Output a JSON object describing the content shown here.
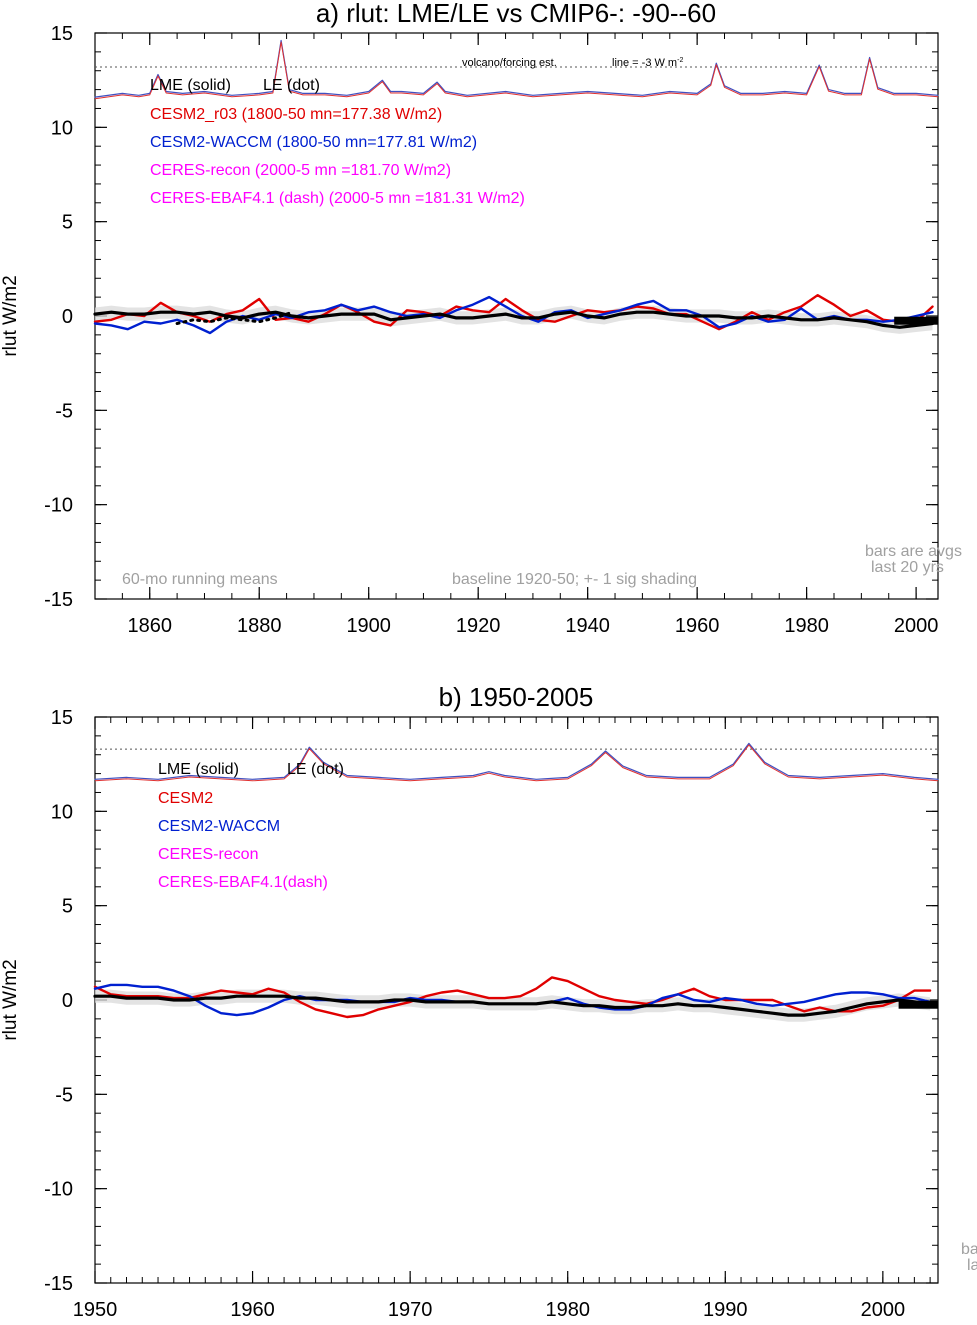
{
  "chart_data": [
    {
      "type": "line",
      "title": "a) rlut: LME/LE vs CMIP6-: -90--60",
      "ylabel": "rlut W/m2",
      "xlim": [
        1850,
        2004
      ],
      "ylim": [
        -15,
        15
      ],
      "x_ticks": [
        "1860",
        "1880",
        "1900",
        "1920",
        "1940",
        "1960",
        "1980",
        "2000"
      ],
      "x_tick_values": [
        1860,
        1880,
        1900,
        1920,
        1940,
        1960,
        1980,
        2000
      ],
      "y_ticks": [
        "15",
        "10",
        "5",
        "0",
        "-5",
        "-10",
        "-15"
      ],
      "y_tick_values": [
        15,
        10,
        5,
        0,
        -5,
        -10,
        -15
      ],
      "legend": {
        "header_solid": "LME (solid)",
        "header_dot": "LE (dot)",
        "entries": [
          {
            "text": "CESM2_r03 (1800-50 mn=177.38 W/m2)",
            "color": "#e00000"
          },
          {
            "text": "CESM2-WACCM (1800-50 mn=177.81 W/m2)",
            "color": "#0020d0"
          },
          {
            "text": "CERES-recon (2000-5 mn =181.70 W/m2)",
            "color": "#ff00ff"
          },
          {
            "text": "CERES-EBAF4.1 (dash) (2000-5 mn =181.31 W/m2)",
            "color": "#ff00ff"
          }
        ]
      },
      "annotations": {
        "volcano": "volcano/forcing est.",
        "line_note": "line = -3 W m",
        "line_note_sup": "-2",
        "running_means": "60-mo running means",
        "baseline": "baseline 1920-50; +- 1 sig shading",
        "bars_line1": "bars are avgs",
        "bars_line2": "last 20 yrs"
      },
      "reference_line_y": 13.2,
      "series": [
        {
          "name": "CESM2_r03",
          "color": "#e00000",
          "x": [
            1850,
            1853,
            1856,
            1859,
            1862,
            1865,
            1868,
            1871,
            1874,
            1877,
            1880,
            1883,
            1886,
            1889,
            1892,
            1895,
            1898,
            1901,
            1904,
            1907,
            1910,
            1913,
            1916,
            1919,
            1922,
            1925,
            1928,
            1931,
            1934,
            1937,
            1940,
            1943,
            1946,
            1949,
            1952,
            1955,
            1958,
            1961,
            1964,
            1967,
            1970,
            1973,
            1976,
            1979,
            1982,
            1985,
            1988,
            1991,
            1994,
            1997,
            2000,
            2003
          ],
          "y": [
            -0.3,
            -0.2,
            0.1,
            0.0,
            0.7,
            0.2,
            0.0,
            -0.3,
            0.1,
            0.3,
            0.9,
            -0.2,
            -0.1,
            -0.3,
            0.1,
            0.6,
            0.2,
            -0.3,
            -0.5,
            0.3,
            0.2,
            0.0,
            0.5,
            0.3,
            0.2,
            0.9,
            0.3,
            -0.2,
            -0.3,
            0.0,
            0.3,
            0.2,
            0.3,
            0.5,
            0.4,
            0.1,
            0.1,
            -0.3,
            -0.7,
            -0.3,
            0.2,
            -0.2,
            0.2,
            0.5,
            1.1,
            0.6,
            0.0,
            0.3,
            -0.2,
            -0.3,
            -0.3,
            0.5
          ]
        },
        {
          "name": "CESM2-WACCM",
          "color": "#0020d0",
          "x": [
            1850,
            1853,
            1856,
            1859,
            1862,
            1865,
            1868,
            1871,
            1874,
            1877,
            1880,
            1883,
            1886,
            1889,
            1892,
            1895,
            1898,
            1901,
            1904,
            1907,
            1910,
            1913,
            1916,
            1919,
            1922,
            1925,
            1928,
            1931,
            1934,
            1937,
            1940,
            1943,
            1946,
            1949,
            1952,
            1955,
            1958,
            1961,
            1964,
            1967,
            1970,
            1973,
            1976,
            1979,
            1982,
            1985,
            1988,
            1991,
            1994,
            1997,
            2000,
            2003
          ],
          "y": [
            -0.4,
            -0.5,
            -0.7,
            -0.3,
            -0.4,
            -0.2,
            -0.5,
            -0.9,
            -0.3,
            0.0,
            -0.2,
            0.1,
            -0.1,
            0.2,
            0.3,
            0.6,
            0.3,
            0.5,
            0.2,
            0.0,
            0.1,
            -0.1,
            0.3,
            0.6,
            1.0,
            0.5,
            0.0,
            -0.3,
            0.2,
            0.3,
            -0.1,
            0.1,
            0.3,
            0.6,
            0.8,
            0.3,
            0.3,
            0.0,
            -0.6,
            -0.4,
            0.0,
            -0.3,
            -0.2,
            0.4,
            -0.2,
            0.0,
            -0.2,
            -0.2,
            -0.3,
            -0.2,
            0.0,
            0.2
          ]
        },
        {
          "name": "LME",
          "color": "#000000",
          "x": [
            1850,
            1853,
            1856,
            1859,
            1862,
            1865,
            1868,
            1871,
            1874,
            1877,
            1880,
            1883,
            1886,
            1889,
            1892,
            1895,
            1898,
            1901,
            1904,
            1907,
            1910,
            1913,
            1916,
            1919,
            1922,
            1925,
            1928,
            1931,
            1934,
            1937,
            1940,
            1943,
            1946,
            1949,
            1952,
            1955,
            1958,
            1961,
            1964,
            1967,
            1970,
            1973,
            1976,
            1979,
            1982,
            1985,
            1988,
            1991,
            1994,
            1997,
            2000,
            2003
          ],
          "y": [
            0.1,
            0.2,
            0.1,
            0.1,
            0.2,
            0.2,
            0.1,
            0.2,
            0.0,
            -0.1,
            0.1,
            0.2,
            0.0,
            -0.1,
            0.0,
            0.1,
            0.1,
            0.1,
            -0.2,
            -0.1,
            0.0,
            0.1,
            -0.1,
            -0.1,
            0.0,
            0.1,
            -0.1,
            -0.1,
            0.1,
            0.2,
            0.0,
            -0.1,
            0.1,
            0.2,
            0.2,
            0.1,
            0.0,
            0.0,
            0.0,
            -0.1,
            -0.1,
            0.0,
            -0.1,
            -0.2,
            -0.2,
            -0.1,
            -0.2,
            -0.3,
            -0.5,
            -0.6,
            -0.5,
            -0.4
          ]
        },
        {
          "name": "LE",
          "color": "#000000",
          "x": [
            1865,
            1868,
            1871,
            1874,
            1877,
            1880,
            1883,
            1886
          ],
          "y": [
            -0.4,
            -0.2,
            -0.3,
            -0.1,
            -0.2,
            -0.3,
            -0.1,
            0.2
          ]
        },
        {
          "name": "volcano/forcing est.",
          "color": "#4050c0",
          "x": [
            1850,
            1855,
            1858,
            1860,
            1861.5,
            1863,
            1866,
            1870,
            1875,
            1880,
            1882.5,
            1884,
            1885.5,
            1888,
            1892,
            1896,
            1900,
            1902.5,
            1904,
            1906,
            1910,
            1912.5,
            1914,
            1918,
            1925,
            1930,
            1935,
            1940,
            1945,
            1950,
            1955,
            1960,
            1962.5,
            1963.5,
            1965,
            1968,
            1972,
            1976,
            1980,
            1982.3,
            1984,
            1987,
            1990,
            1991.5,
            1993,
            1996,
            2000,
            2004
          ],
          "y": [
            11.6,
            11.8,
            11.7,
            11.8,
            12.8,
            11.9,
            11.8,
            11.9,
            11.7,
            11.8,
            11.9,
            14.6,
            12.0,
            11.8,
            11.8,
            11.7,
            11.9,
            12.5,
            11.9,
            11.9,
            11.8,
            12.4,
            11.9,
            11.7,
            11.9,
            11.7,
            11.8,
            11.9,
            11.8,
            11.7,
            11.9,
            11.8,
            12.3,
            13.4,
            12.2,
            11.8,
            11.8,
            11.9,
            11.8,
            13.3,
            12.0,
            11.8,
            11.8,
            13.7,
            12.1,
            11.8,
            11.8,
            11.7
          ]
        }
      ],
      "bars": [
        {
          "color": "#000000",
          "x": [
            1996,
            2004
          ],
          "y": -0.25
        }
      ]
    },
    {
      "type": "line",
      "title": "b) 1950-2005",
      "ylabel": "rlut W/m2",
      "xlim": [
        1950,
        2003.5
      ],
      "ylim": [
        -15,
        15
      ],
      "x_ticks": [
        "1950",
        "1960",
        "1970",
        "1980",
        "1990",
        "2000"
      ],
      "x_tick_values": [
        1950,
        1960,
        1970,
        1980,
        1990,
        2000
      ],
      "y_ticks": [
        "15",
        "10",
        "5",
        "0",
        "-5",
        "-10",
        "-15"
      ],
      "y_tick_values": [
        15,
        10,
        5,
        0,
        -5,
        -10,
        -15
      ],
      "legend": {
        "header_solid": "LME (solid)",
        "header_dot": "LE (dot)",
        "entries": [
          {
            "text": "CESM2",
            "color": "#e00000"
          },
          {
            "text": "CESM2-WACCM",
            "color": "#0020d0"
          },
          {
            "text": "CERES-recon",
            "color": "#ff00ff"
          },
          {
            "text": "CERES-EBAF4.1(dash)",
            "color": "#ff00ff"
          }
        ]
      },
      "annotations": {
        "bars_line1": "ba",
        "bars_line2": "la"
      },
      "reference_line_y": 13.3,
      "series": [
        {
          "name": "CESM2",
          "color": "#e00000",
          "x": [
            1950,
            1951,
            1952,
            1953,
            1954,
            1955,
            1956,
            1957,
            1958,
            1959,
            1960,
            1961,
            1962,
            1963,
            1964,
            1965,
            1966,
            1967,
            1968,
            1969,
            1970,
            1971,
            1972,
            1973,
            1974,
            1975,
            1976,
            1977,
            1978,
            1979,
            1980,
            1981,
            1982,
            1983,
            1984,
            1985,
            1986,
            1987,
            1988,
            1989,
            1990,
            1991,
            1992,
            1993,
            1994,
            1995,
            1996,
            1997,
            1998,
            1999,
            2000,
            2001,
            2002,
            2003
          ],
          "y": [
            0.7,
            0.3,
            0.2,
            0.2,
            0.2,
            0.1,
            0.1,
            0.3,
            0.5,
            0.4,
            0.3,
            0.6,
            0.4,
            -0.1,
            -0.5,
            -0.7,
            -0.9,
            -0.8,
            -0.5,
            -0.3,
            -0.1,
            0.2,
            0.4,
            0.5,
            0.3,
            0.1,
            0.1,
            0.2,
            0.6,
            1.2,
            1.0,
            0.6,
            0.2,
            0.0,
            -0.1,
            -0.2,
            0.0,
            0.3,
            0.6,
            0.2,
            0.0,
            0.0,
            0.0,
            0.0,
            -0.3,
            -0.6,
            -0.4,
            -0.6,
            -0.6,
            -0.4,
            -0.3,
            0.0,
            0.5,
            0.5
          ]
        },
        {
          "name": "CESM2-WACCM",
          "color": "#0020d0",
          "x": [
            1950,
            1951,
            1952,
            1953,
            1954,
            1955,
            1956,
            1957,
            1958,
            1959,
            1960,
            1961,
            1962,
            1963,
            1964,
            1965,
            1966,
            1967,
            1968,
            1969,
            1970,
            1971,
            1972,
            1973,
            1974,
            1975,
            1976,
            1977,
            1978,
            1979,
            1980,
            1981,
            1982,
            1983,
            1984,
            1985,
            1986,
            1987,
            1988,
            1989,
            1990,
            1991,
            1992,
            1993,
            1994,
            1995,
            1996,
            1997,
            1998,
            1999,
            2000,
            2001,
            2002,
            2003
          ],
          "y": [
            0.6,
            0.8,
            0.8,
            0.7,
            0.7,
            0.5,
            0.2,
            -0.3,
            -0.7,
            -0.8,
            -0.7,
            -0.4,
            0.0,
            0.2,
            0.0,
            0.0,
            0.0,
            -0.1,
            -0.1,
            -0.1,
            0.1,
            0.0,
            0.0,
            -0.1,
            -0.1,
            -0.2,
            -0.2,
            -0.2,
            -0.2,
            -0.1,
            0.1,
            -0.2,
            -0.4,
            -0.5,
            -0.5,
            -0.3,
            0.1,
            0.3,
            0.0,
            -0.1,
            0.1,
            0.0,
            -0.2,
            -0.3,
            -0.2,
            -0.1,
            0.1,
            0.3,
            0.4,
            0.4,
            0.3,
            0.1,
            0.1,
            -0.1
          ]
        },
        {
          "name": "LME",
          "color": "#000000",
          "x": [
            1950,
            1951,
            1952,
            1953,
            1954,
            1955,
            1956,
            1957,
            1958,
            1959,
            1960,
            1961,
            1962,
            1963,
            1964,
            1965,
            1966,
            1967,
            1968,
            1969,
            1970,
            1971,
            1972,
            1973,
            1974,
            1975,
            1976,
            1977,
            1978,
            1979,
            1980,
            1981,
            1982,
            1983,
            1984,
            1985,
            1986,
            1987,
            1988,
            1989,
            1990,
            1991,
            1992,
            1993,
            1994,
            1995,
            1996,
            1997,
            1998,
            1999,
            2000,
            2001,
            2002,
            2003
          ],
          "y": [
            0.2,
            0.2,
            0.1,
            0.1,
            0.1,
            0.0,
            0.0,
            0.1,
            0.1,
            0.2,
            0.2,
            0.2,
            0.2,
            0.1,
            0.1,
            0.0,
            -0.1,
            -0.1,
            -0.1,
            0.0,
            0.0,
            -0.1,
            -0.1,
            -0.1,
            -0.1,
            -0.2,
            -0.2,
            -0.2,
            -0.2,
            -0.1,
            -0.2,
            -0.3,
            -0.3,
            -0.4,
            -0.4,
            -0.3,
            -0.3,
            -0.2,
            -0.3,
            -0.3,
            -0.4,
            -0.5,
            -0.6,
            -0.7,
            -0.8,
            -0.8,
            -0.7,
            -0.6,
            -0.4,
            -0.2,
            -0.1,
            0.0,
            -0.1,
            -0.2
          ]
        },
        {
          "name": "volcano/forcing est.",
          "color": "#4050c0",
          "x": [
            1950,
            1952,
            1954,
            1956,
            1958,
            1960,
            1962,
            1963,
            1963.6,
            1964.5,
            1966,
            1968,
            1970,
            1972,
            1974,
            1975,
            1976,
            1978,
            1980,
            1981.5,
            1982.4,
            1983.5,
            1985,
            1987,
            1989,
            1990.5,
            1991.5,
            1992.5,
            1994,
            1996,
            1998,
            2000,
            2002,
            2003.5
          ],
          "y": [
            11.7,
            11.8,
            11.7,
            11.9,
            11.8,
            11.7,
            11.8,
            12.5,
            13.4,
            12.6,
            11.9,
            11.8,
            11.7,
            11.8,
            11.9,
            12.1,
            11.9,
            11.7,
            11.8,
            12.5,
            13.2,
            12.4,
            11.9,
            11.8,
            11.8,
            12.5,
            13.6,
            12.6,
            11.9,
            11.8,
            11.9,
            12.0,
            11.8,
            11.7
          ]
        }
      ],
      "bars": [
        {
          "color": "#000000",
          "x": [
            2001,
            2003.5
          ],
          "y": -0.25
        }
      ]
    }
  ]
}
